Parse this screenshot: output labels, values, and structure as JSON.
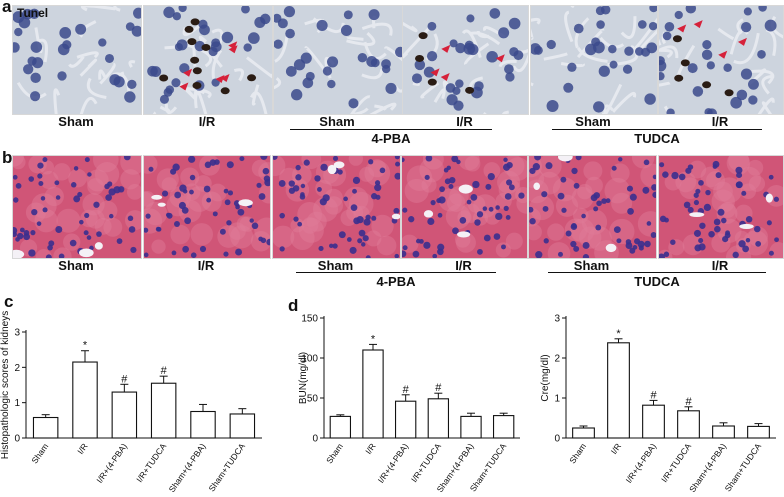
{
  "panel_a": {
    "letter": "a",
    "stain_label": "Tunel",
    "captions": [
      "Sham",
      "I/R",
      "Sham",
      "I/R",
      "Sham",
      "I/R"
    ],
    "groups": [
      "4-PBA",
      "TUDCA"
    ]
  },
  "panel_b": {
    "letter": "b",
    "captions": [
      "Sham",
      "I/R",
      "Sham",
      "I/R",
      "Sham",
      "I/R"
    ],
    "groups": [
      "4-PBA",
      "TUDCA"
    ]
  },
  "colors": {
    "tunel_nucleus": "#3b4a8c",
    "tunel_positive": "#2a1c14",
    "arrow_red": "#d6213a",
    "he_background": "#d05577",
    "he_nucleus": "#3a2f8e",
    "bar_fill": "#ffffff",
    "axis": "#111111"
  },
  "chart_data": [
    {
      "letter": "c",
      "type": "bar",
      "title": "",
      "xlabel": "",
      "ylabel": "Histopathologic scores of kidneys",
      "categories": [
        "Sham",
        "I/R",
        "I/R+(4-PBA)",
        "I/R+TUDCA",
        "Sham+(4-PBA)",
        "Sham+TUDCA"
      ],
      "values": [
        0.58,
        2.15,
        1.3,
        1.55,
        0.75,
        0.68
      ],
      "errors": [
        0.08,
        0.32,
        0.22,
        0.2,
        0.2,
        0.15
      ],
      "marks": [
        "",
        "*",
        "#",
        "#",
        "",
        ""
      ],
      "ylim": [
        0,
        3
      ],
      "yticks": [
        0,
        1,
        2,
        3
      ],
      "ytick_labels": [
        "0",
        "1",
        "2",
        "3"
      ]
    },
    {
      "letter": "d",
      "type": "bar",
      "title": "",
      "xlabel": "",
      "ylabel": "BUN(mg/dl)",
      "categories": [
        "Sham",
        "I/R",
        "I/R+(4-PBA)",
        "I/R+TUDCA",
        "Sham+(4-PBA)",
        "Sham+TUDCA"
      ],
      "values": [
        27,
        110,
        46,
        49,
        27,
        28
      ],
      "errors": [
        2,
        7,
        8,
        7,
        4,
        3
      ],
      "marks": [
        "",
        "*",
        "#",
        "#",
        "",
        ""
      ],
      "ylim": [
        0,
        150
      ],
      "yticks": [
        0,
        50,
        100,
        150
      ],
      "ytick_labels": [
        "0",
        "50",
        "100",
        "150"
      ]
    },
    {
      "letter": "",
      "type": "bar",
      "title": "",
      "xlabel": "",
      "ylabel": "Cre(mg/dl)",
      "categories": [
        "Sham",
        "I/R",
        "I/R+(4-PBA)",
        "I/R+TUDCA",
        "Sham+(4-PBA)",
        "Sham+TUDCA"
      ],
      "values": [
        0.25,
        2.38,
        0.82,
        0.68,
        0.3,
        0.29
      ],
      "errors": [
        0.05,
        0.1,
        0.12,
        0.1,
        0.08,
        0.07
      ],
      "marks": [
        "",
        "*",
        "#",
        "#",
        "",
        ""
      ],
      "ylim": [
        0,
        3
      ],
      "yticks": [
        0,
        1,
        2,
        3
      ],
      "ytick_labels": [
        "0",
        "1",
        "2",
        "3"
      ]
    }
  ]
}
